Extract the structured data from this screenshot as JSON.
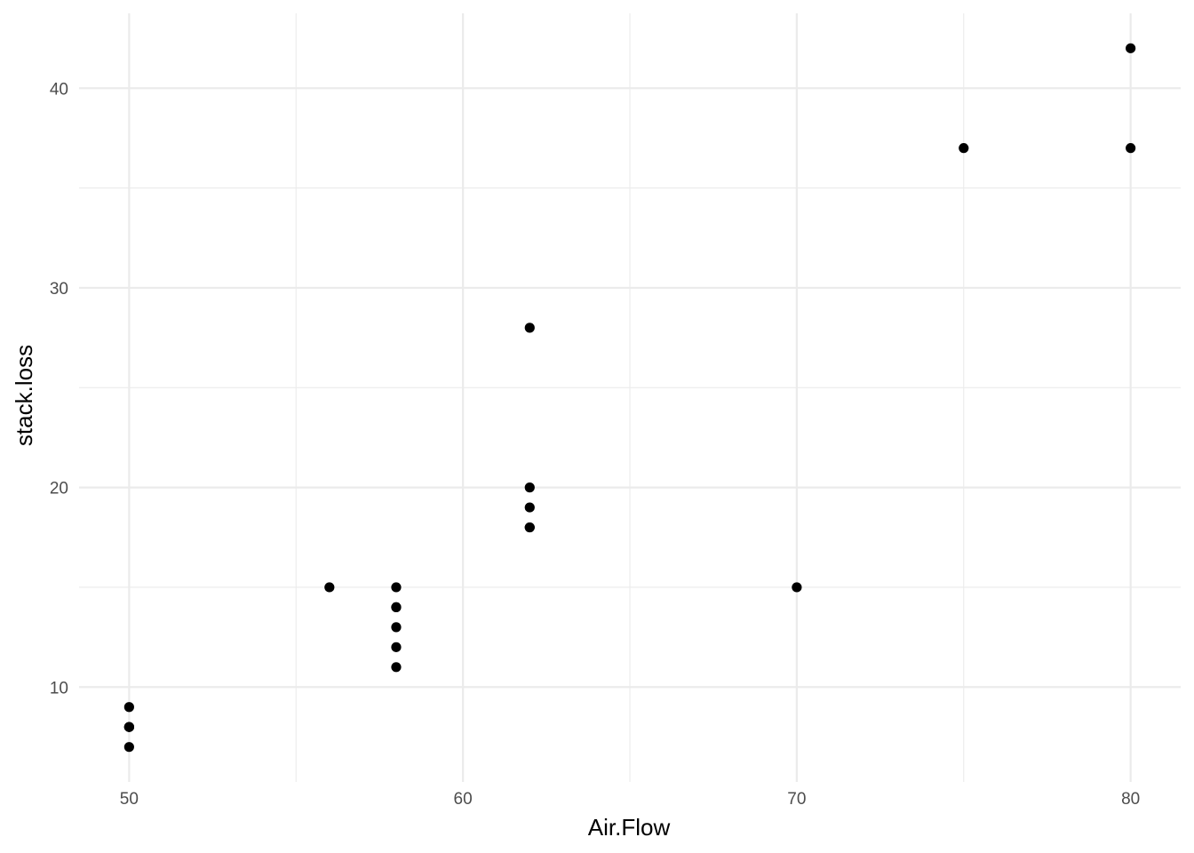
{
  "chart_data": {
    "type": "scatter",
    "title": "",
    "xlabel": "Air.Flow",
    "ylabel": "stack.loss",
    "xlim": [
      48.5,
      81.5
    ],
    "ylim": [
      5.25,
      43.75
    ],
    "x_ticks": [
      50,
      60,
      70,
      80
    ],
    "x_tick_labels": [
      "50",
      "60",
      "70",
      "80"
    ],
    "x_minor_ticks": [
      55,
      65,
      75
    ],
    "y_ticks": [
      10,
      20,
      30,
      40
    ],
    "y_tick_labels": [
      "10",
      "20",
      "30",
      "40"
    ],
    "y_minor_ticks": [
      15,
      25,
      35
    ],
    "grid": true,
    "legend": "none",
    "point_color": "#000000",
    "grid_color": "#ebebeb",
    "points": [
      {
        "x": 80,
        "y": 42
      },
      {
        "x": 80,
        "y": 37
      },
      {
        "x": 75,
        "y": 37
      },
      {
        "x": 62,
        "y": 28
      },
      {
        "x": 62,
        "y": 18
      },
      {
        "x": 62,
        "y": 18
      },
      {
        "x": 62,
        "y": 19
      },
      {
        "x": 62,
        "y": 20
      },
      {
        "x": 58,
        "y": 15
      },
      {
        "x": 58,
        "y": 14
      },
      {
        "x": 58,
        "y": 14
      },
      {
        "x": 58,
        "y": 13
      },
      {
        "x": 58,
        "y": 11
      },
      {
        "x": 58,
        "y": 12
      },
      {
        "x": 50,
        "y": 8
      },
      {
        "x": 50,
        "y": 7
      },
      {
        "x": 50,
        "y": 8
      },
      {
        "x": 50,
        "y": 8
      },
      {
        "x": 50,
        "y": 9
      },
      {
        "x": 56,
        "y": 15
      },
      {
        "x": 70,
        "y": 15
      }
    ]
  }
}
